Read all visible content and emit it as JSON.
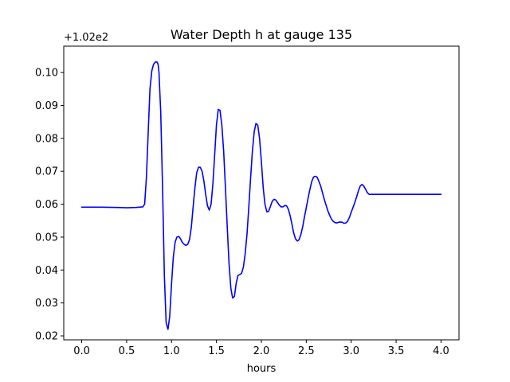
{
  "chart_data": {
    "type": "line",
    "title": "Water Depth h at gauge 135",
    "xlabel": "hours",
    "ylabel": "",
    "y_offset_text": "+1.02e2",
    "xlim": [
      -0.2,
      4.2
    ],
    "ylim": [
      0.0188,
      0.108
    ],
    "x_ticks": [
      0.0,
      0.5,
      1.0,
      1.5,
      2.0,
      2.5,
      3.0,
      3.5,
      4.0
    ],
    "x_tick_labels": [
      "0.0",
      "0.5",
      "1.0",
      "1.5",
      "2.0",
      "2.5",
      "3.0",
      "3.5",
      "4.0"
    ],
    "y_ticks": [
      0.02,
      0.03,
      0.04,
      0.05,
      0.06,
      0.07,
      0.08,
      0.09,
      0.1
    ],
    "y_tick_labels": [
      "0.02",
      "0.03",
      "0.04",
      "0.05",
      "0.06",
      "0.07",
      "0.08",
      "0.09",
      "0.10"
    ],
    "grid": false,
    "legend": "none",
    "series": [
      {
        "color": "#0000ff",
        "x": [
          0.0,
          0.2,
          0.4,
          0.5,
          0.6,
          0.68,
          0.7,
          0.72,
          0.74,
          0.76,
          0.78,
          0.8,
          0.82,
          0.84,
          0.85,
          0.86,
          0.88,
          0.9,
          0.92,
          0.94,
          0.96,
          0.98,
          1.0,
          1.02,
          1.04,
          1.06,
          1.08,
          1.1,
          1.12,
          1.14,
          1.16,
          1.18,
          1.2,
          1.22,
          1.24,
          1.26,
          1.28,
          1.3,
          1.32,
          1.34,
          1.36,
          1.38,
          1.4,
          1.42,
          1.44,
          1.46,
          1.48,
          1.5,
          1.52,
          1.54,
          1.56,
          1.58,
          1.6,
          1.62,
          1.64,
          1.66,
          1.68,
          1.7,
          1.72,
          1.74,
          1.76,
          1.78,
          1.8,
          1.82,
          1.84,
          1.86,
          1.88,
          1.9,
          1.92,
          1.94,
          1.96,
          1.98,
          2.0,
          2.02,
          2.04,
          2.06,
          2.08,
          2.1,
          2.12,
          2.14,
          2.16,
          2.18,
          2.2,
          2.22,
          2.24,
          2.26,
          2.28,
          2.3,
          2.32,
          2.34,
          2.36,
          2.38,
          2.4,
          2.42,
          2.44,
          2.46,
          2.48,
          2.5,
          2.52,
          2.54,
          2.56,
          2.58,
          2.6,
          2.62,
          2.64,
          2.66,
          2.68,
          2.7,
          2.72,
          2.74,
          2.76,
          2.78,
          2.8,
          2.82,
          2.84,
          2.86,
          2.88,
          2.9,
          2.92,
          2.94,
          2.96,
          2.98,
          3.0,
          3.02,
          3.04,
          3.06,
          3.08,
          3.1,
          3.12,
          3.14,
          3.16,
          3.18,
          3.2,
          3.22,
          3.24,
          3.26,
          3.28,
          3.3,
          3.32,
          3.34,
          3.36,
          3.38,
          3.4,
          3.42,
          3.44,
          3.46,
          3.48,
          3.5,
          3.52,
          3.54,
          3.56,
          3.58,
          3.6,
          3.62,
          3.64,
          3.66,
          3.68,
          3.7,
          3.72,
          3.74,
          3.76,
          3.78,
          3.8,
          3.82,
          3.84,
          3.86,
          3.88,
          3.9,
          3.92,
          3.94,
          3.96,
          3.98,
          4.0
        ],
        "y": [
          0.0591,
          0.0591,
          0.059,
          0.0589,
          0.059,
          0.0592,
          0.06,
          0.068,
          0.082,
          0.095,
          0.1005,
          0.1025,
          0.1032,
          0.1032,
          0.1025,
          0.1,
          0.088,
          0.065,
          0.038,
          0.024,
          0.022,
          0.026,
          0.036,
          0.044,
          0.0485,
          0.05,
          0.0502,
          0.0495,
          0.0484,
          0.0478,
          0.0475,
          0.0478,
          0.0492,
          0.053,
          0.059,
          0.065,
          0.0695,
          0.0712,
          0.0712,
          0.07,
          0.067,
          0.063,
          0.0595,
          0.0582,
          0.06,
          0.066,
          0.075,
          0.084,
          0.0888,
          0.0885,
          0.084,
          0.076,
          0.065,
          0.053,
          0.042,
          0.0345,
          0.0315,
          0.032,
          0.036,
          0.0384,
          0.0386,
          0.039,
          0.041,
          0.045,
          0.051,
          0.059,
          0.068,
          0.076,
          0.082,
          0.0845,
          0.084,
          0.08,
          0.073,
          0.065,
          0.06,
          0.0577,
          0.0578,
          0.0593,
          0.0608,
          0.0615,
          0.0613,
          0.0605,
          0.0597,
          0.0592,
          0.0592,
          0.0596,
          0.0595,
          0.0585,
          0.0565,
          0.054,
          0.0512,
          0.0495,
          0.0488,
          0.0492,
          0.0508,
          0.0532,
          0.0562,
          0.059,
          0.0618,
          0.0645,
          0.0668,
          0.0682,
          0.0685,
          0.0682,
          0.067,
          0.0655,
          0.0635,
          0.0615,
          0.0597,
          0.058,
          0.0566,
          0.0555,
          0.0548,
          0.0544,
          0.0543,
          0.0545,
          0.0546,
          0.0545,
          0.0542,
          0.0543,
          0.0548,
          0.056,
          0.0575,
          0.059,
          0.0605,
          0.0622,
          0.064,
          0.0655,
          0.066,
          0.0655,
          0.0645,
          0.0635,
          0.063,
          0.063,
          0.063,
          0.063,
          0.063,
          0.063,
          0.063,
          0.063,
          0.063,
          0.063,
          0.063,
          0.063,
          0.063,
          0.063,
          0.063,
          0.063,
          0.063,
          0.063,
          0.063,
          0.063,
          0.063,
          0.063,
          0.063,
          0.063,
          0.063,
          0.063,
          0.063,
          0.063,
          0.063,
          0.063,
          0.063,
          0.063,
          0.063,
          0.063,
          0.063,
          0.063,
          0.063,
          0.063,
          0.063,
          0.063,
          0.063
        ]
      }
    ]
  }
}
